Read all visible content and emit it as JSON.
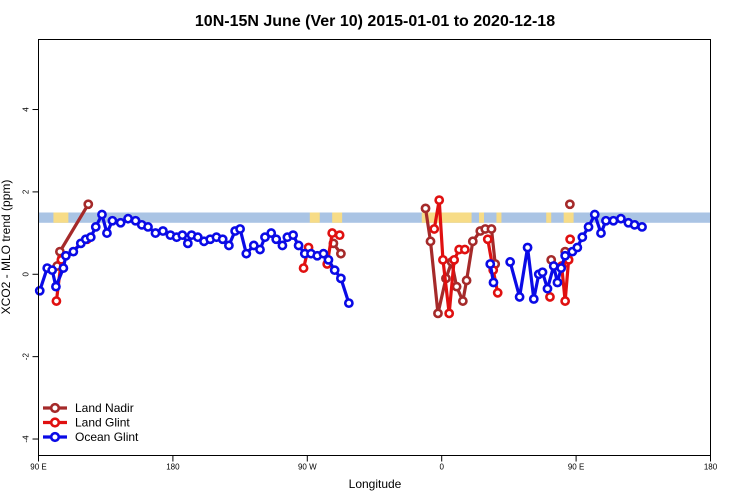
{
  "chart_data": {
    "type": "line",
    "title": "10N-15N June (Ver 10)   2015-01-01 to 2020-12-18",
    "xlabel": "Longitude",
    "ylabel": "XCO2 - MLO trend (ppm)",
    "xlim": [
      -90,
      180
    ],
    "ylim": [
      -4.4,
      5.7
    ],
    "x_ticks": [
      {
        "value": -90,
        "label": "90 E"
      },
      {
        "value": -36,
        "label": "180"
      },
      {
        "value": 18,
        "label": "90 W"
      },
      {
        "value": 72,
        "label": "0"
      },
      {
        "value": 126,
        "label": "90 E"
      },
      {
        "value": 180,
        "label": "180"
      }
    ],
    "y_ticks": [
      {
        "value": -4,
        "label": "-4"
      },
      {
        "value": -2,
        "label": "-2"
      },
      {
        "value": 0,
        "label": "0"
      },
      {
        "value": 2,
        "label": "2"
      },
      {
        "value": 4,
        "label": "4"
      }
    ],
    "band": {
      "ymin": 1.25,
      "ymax": 1.5,
      "ocean_color": "#aac4e4",
      "land_color": "#f7dc87"
    },
    "land_segments": [
      [
        -84,
        -78
      ],
      [
        19,
        23
      ],
      [
        28,
        32
      ],
      [
        64,
        84
      ],
      [
        87,
        89
      ],
      [
        94,
        96
      ],
      [
        114,
        116
      ],
      [
        121,
        125
      ]
    ],
    "legend_position": "bottom-left",
    "series": [
      {
        "name": "Land Nadir",
        "color": "#a52a2a",
        "points": [
          [
            -82.5,
            0.2
          ],
          [
            -81.4,
            0.55
          ],
          [
            -70,
            1.7
          ],
          [
            null,
            null
          ],
          [
            28.5,
            0.75
          ],
          [
            31.5,
            0.5
          ],
          [
            null,
            null
          ],
          [
            65.5,
            1.6
          ],
          [
            67.5,
            0.8
          ],
          [
            70.5,
            -0.95
          ],
          [
            73.7,
            -0.1
          ],
          [
            76,
            0.3
          ],
          [
            78,
            -0.3
          ],
          [
            80.5,
            -0.65
          ],
          [
            82,
            -0.15
          ],
          [
            84.5,
            0.8
          ],
          [
            87.5,
            1.05
          ],
          [
            89.5,
            1.1
          ],
          [
            92,
            1.1
          ],
          [
            93.5,
            0.25
          ],
          [
            null,
            null
          ],
          [
            116,
            0.35
          ],
          [
            null,
            null
          ],
          [
            121.6,
            0.55
          ],
          [
            null,
            null
          ],
          [
            123.5,
            1.7
          ]
        ]
      },
      {
        "name": "Land Glint",
        "color": "#e01010",
        "points": [
          [
            -82.8,
            -0.65
          ],
          [
            -80.8,
            0.35
          ],
          [
            -70.5,
            0.85
          ],
          [
            null,
            null
          ],
          [
            16.5,
            0.15
          ],
          [
            18.5,
            0.65
          ],
          [
            null,
            null
          ],
          [
            26,
            0.25
          ],
          [
            28,
            1.0
          ],
          [
            31,
            0.95
          ],
          [
            null,
            null
          ],
          [
            69,
            1.1
          ],
          [
            71,
            1.8
          ],
          [
            72.5,
            0.35
          ],
          [
            75,
            -0.95
          ],
          [
            77,
            0.35
          ],
          [
            79,
            0.6
          ],
          [
            81.3,
            0.6
          ],
          [
            null,
            null
          ],
          [
            90.5,
            0.85
          ],
          [
            92.7,
            0.1
          ],
          [
            94.5,
            -0.45
          ],
          [
            null,
            null
          ],
          [
            115.5,
            -0.55
          ],
          [
            null,
            null
          ],
          [
            120.2,
            0.2
          ],
          [
            121.6,
            -0.65
          ],
          [
            123,
            0.35
          ],
          [
            null,
            null
          ],
          [
            123.6,
            0.85
          ]
        ]
      },
      {
        "name": "Ocean Glint",
        "color": "#0a0ae6",
        "points": [
          [
            -89.5,
            -0.4
          ],
          [
            -86.5,
            0.15
          ],
          [
            -84.5,
            0.1
          ],
          [
            -83,
            -0.3
          ],
          [
            -80,
            0.15
          ],
          [
            -79,
            0.45
          ],
          [
            -76,
            0.55
          ],
          [
            -73,
            0.75
          ],
          [
            -71,
            0.85
          ],
          [
            -69,
            0.9
          ],
          [
            -67,
            1.15
          ],
          [
            -64.5,
            1.45
          ],
          [
            -62.5,
            1.0
          ],
          [
            -60.3,
            1.3
          ],
          [
            -57,
            1.25
          ],
          [
            -54,
            1.35
          ],
          [
            -51,
            1.3
          ],
          [
            -48.5,
            1.2
          ],
          [
            -46,
            1.15
          ],
          [
            -43,
            1.0
          ],
          [
            -40,
            1.05
          ],
          [
            -37,
            0.95
          ],
          [
            -34.5,
            0.9
          ],
          [
            -32.2,
            0.95
          ],
          [
            -30,
            0.75
          ],
          [
            -28.5,
            0.95
          ],
          [
            -26,
            0.9
          ],
          [
            -23.5,
            0.8
          ],
          [
            -21,
            0.85
          ],
          [
            -18.5,
            0.9
          ],
          [
            -16,
            0.85
          ],
          [
            -13.5,
            0.7
          ],
          [
            -11,
            1.05
          ],
          [
            -9,
            1.1
          ],
          [
            -6.5,
            0.5
          ],
          [
            -3.5,
            0.7
          ],
          [
            -1,
            0.6
          ],
          [
            1,
            0.9
          ],
          [
            3.5,
            1.0
          ],
          [
            5.5,
            0.85
          ],
          [
            8,
            0.7
          ],
          [
            10,
            0.9
          ],
          [
            12.3,
            0.95
          ],
          [
            14.5,
            0.7
          ],
          [
            17,
            0.5
          ],
          [
            19.5,
            0.5
          ],
          [
            22,
            0.45
          ],
          [
            24.5,
            0.5
          ],
          [
            26.5,
            0.35
          ],
          [
            29,
            0.1
          ],
          [
            31.5,
            -0.1
          ],
          [
            34.7,
            -0.7
          ],
          [
            null,
            null
          ],
          [
            91.5,
            0.25
          ],
          [
            92.8,
            -0.2
          ],
          [
            null,
            null
          ],
          [
            99.5,
            0.3
          ],
          [
            103.3,
            -0.55
          ],
          [
            106.5,
            0.65
          ],
          [
            109,
            -0.6
          ],
          [
            111,
            0.0
          ],
          [
            112.5,
            0.05
          ],
          [
            114.5,
            -0.35
          ],
          [
            117,
            0.2
          ],
          [
            118.5,
            -0.2
          ],
          [
            120,
            0.15
          ],
          [
            121.6,
            0.45
          ],
          [
            124.5,
            0.55
          ],
          [
            126.5,
            0.65
          ],
          [
            128.5,
            0.9
          ],
          [
            131,
            1.15
          ],
          [
            133.5,
            1.45
          ],
          [
            136,
            1.0
          ],
          [
            138,
            1.3
          ],
          [
            141,
            1.3
          ],
          [
            144,
            1.35
          ],
          [
            147,
            1.25
          ],
          [
            149.5,
            1.2
          ],
          [
            152.5,
            1.15
          ]
        ]
      }
    ]
  }
}
